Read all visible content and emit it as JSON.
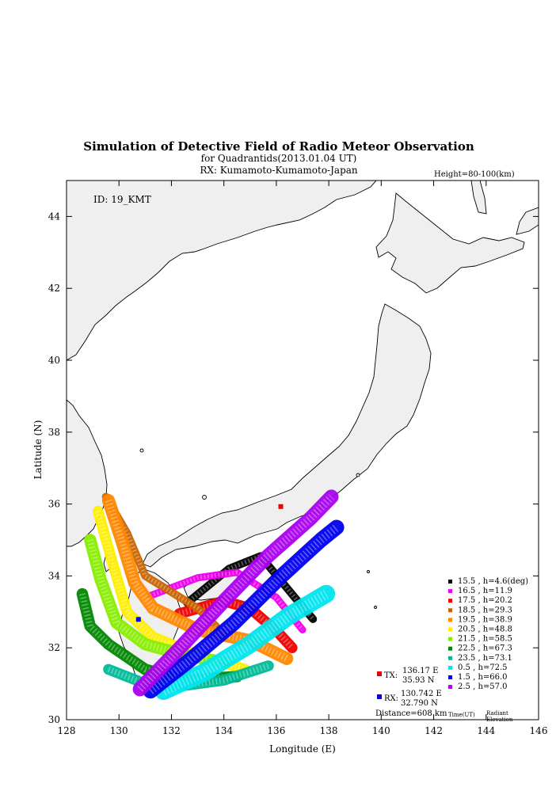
{
  "header": {
    "title": "Simulation of Detective Field of Radio Meteor Observation",
    "subtitle1": "for Quadrantids(2013.01.04 UT)",
    "subtitle2": "RX: Kumamoto-Kumamoto-Japan",
    "height_note": "Height=80-100(km)",
    "id_label": "ID: 19_KMT"
  },
  "axes": {
    "xlabel": "Longitude (E)",
    "ylabel": "Latitude (N)",
    "xlim": [
      128,
      146
    ],
    "ylim": [
      30,
      45
    ],
    "xticks": [
      "128",
      "130",
      "132",
      "134",
      "136",
      "138",
      "140",
      "142",
      "144",
      "146"
    ],
    "yticks": [
      "30",
      "32",
      "34",
      "36",
      "38",
      "40",
      "42",
      "44"
    ]
  },
  "stations": {
    "tx_label": "TX:",
    "tx_lon": "136.17 E",
    "tx_lat": "35.93 N",
    "rx_label": "RX:",
    "rx_lon": "130.742 E",
    "rx_lat": "32.790 N",
    "distance": "Distance=608 km",
    "tx_color": "#ee0000",
    "rx_color": "#0000ee"
  },
  "legend": {
    "time_caption": "Time(UT)",
    "radiant_caption_1": "Radiant",
    "radiant_caption_2": "Elevation"
  },
  "colors": {
    "land": "#efefef",
    "coast": "#000000"
  },
  "chart_data": {
    "type": "scatter",
    "title": "Simulation of Detective Field of Radio Meteor Observation",
    "xlabel": "Longitude (E)",
    "ylabel": "Latitude (N)",
    "xlim": [
      128,
      146
    ],
    "ylim": [
      30,
      45
    ],
    "grid": false,
    "legend_placement": "bottom-right",
    "points": [
      {
        "name": "TX",
        "lon": 136.17,
        "lat": 35.93,
        "color": "#ee0000"
      },
      {
        "name": "RX",
        "lon": 130.742,
        "lat": 32.79,
        "color": "#0000ee"
      }
    ],
    "series": [
      {
        "label": "15.5 , h=4.6(deg)",
        "time": 15.5,
        "elevation": 4.6,
        "color": "#000000",
        "path": [
          [
            132.6,
            33.25
          ],
          [
            134.2,
            34.2
          ],
          [
            135.4,
            34.55
          ],
          [
            136.7,
            33.4
          ],
          [
            137.4,
            32.8
          ]
        ],
        "width": 0.22
      },
      {
        "label": "16.5 , h=11.9",
        "time": 16.5,
        "elevation": 11.9,
        "color": "#ee00ee",
        "path": [
          [
            131.2,
            33.45
          ],
          [
            133.0,
            33.95
          ],
          [
            134.5,
            34.1
          ],
          [
            136.0,
            33.4
          ],
          [
            137.0,
            32.5
          ]
        ],
        "width": 0.2
      },
      {
        "label": "17.5 , h=20.2",
        "time": 17.5,
        "elevation": 20.2,
        "color": "#ee0000",
        "path": [
          [
            132.3,
            32.95
          ],
          [
            134.0,
            33.3
          ],
          [
            135.0,
            33.1
          ],
          [
            136.1,
            32.4
          ],
          [
            136.6,
            32.0
          ]
        ],
        "width": 0.3
      },
      {
        "label": "18.5 , h=29.3",
        "time": 18.5,
        "elevation": 29.3,
        "color": "#c86400",
        "path": [
          [
            129.5,
            36.2
          ],
          [
            130.3,
            35.2
          ],
          [
            131.0,
            34.0
          ],
          [
            132.0,
            33.55
          ],
          [
            133.0,
            33.1
          ],
          [
            133.7,
            32.6
          ]
        ],
        "width": 0.22
      },
      {
        "label": "19.5 , h=38.9",
        "time": 19.5,
        "elevation": 38.9,
        "color": "#ff8800",
        "path": [
          [
            129.6,
            36.1
          ],
          [
            130.1,
            35.0
          ],
          [
            130.6,
            33.8
          ],
          [
            131.3,
            33.1
          ],
          [
            133.0,
            32.5
          ],
          [
            135.0,
            32.2
          ],
          [
            136.4,
            31.7
          ]
        ],
        "width": 0.36
      },
      {
        "label": "20.5 , h=48.8",
        "time": 20.5,
        "elevation": 48.8,
        "color": "#ffee00",
        "path": [
          [
            129.2,
            35.8
          ],
          [
            129.7,
            34.5
          ],
          [
            130.3,
            33.0
          ],
          [
            131.3,
            32.3
          ],
          [
            133.0,
            31.8
          ],
          [
            134.8,
            31.4
          ]
        ],
        "width": 0.3
      },
      {
        "label": "21.5 , h=58.5",
        "time": 21.5,
        "elevation": 58.5,
        "color": "#88ee00",
        "path": [
          [
            128.9,
            35.0
          ],
          [
            129.3,
            33.9
          ],
          [
            129.9,
            32.7
          ],
          [
            131.0,
            32.1
          ],
          [
            132.5,
            31.8
          ],
          [
            134.0,
            31.6
          ]
        ],
        "width": 0.34
      },
      {
        "label": "22.5 , h=67.3",
        "time": 22.5,
        "elevation": 67.3,
        "color": "#008800",
        "path": [
          [
            128.6,
            33.5
          ],
          [
            128.9,
            32.6
          ],
          [
            129.6,
            32.1
          ],
          [
            131.0,
            31.4
          ],
          [
            132.5,
            31.1
          ],
          [
            134.5,
            31.2
          ]
        ],
        "width": 0.32
      },
      {
        "label": "23.5 , h=73.1",
        "time": 23.5,
        "elevation": 73.1,
        "color": "#00bb99",
        "path": [
          [
            129.6,
            31.4
          ],
          [
            131.0,
            31.0
          ],
          [
            132.5,
            30.95
          ],
          [
            134.0,
            31.1
          ],
          [
            135.7,
            31.5
          ]
        ],
        "width": 0.3
      },
      {
        "label": "0.5 , h=72.5",
        "time": 0.5,
        "elevation": 72.5,
        "color": "#00e5ee",
        "path": [
          [
            131.7,
            30.8
          ],
          [
            133.2,
            31.3
          ],
          [
            135.0,
            32.1
          ],
          [
            136.5,
            32.9
          ],
          [
            137.9,
            33.5
          ]
        ],
        "width": 0.5
      },
      {
        "label": "1.5 , h=66.0",
        "time": 1.5,
        "elevation": 66.0,
        "color": "#0000ee",
        "path": [
          [
            131.2,
            30.8
          ],
          [
            132.6,
            31.6
          ],
          [
            134.4,
            32.7
          ],
          [
            136.2,
            34.0
          ],
          [
            137.7,
            35.0
          ],
          [
            138.3,
            35.35
          ]
        ],
        "width": 0.42
      },
      {
        "label": "2.5 , h=57.0",
        "time": 2.5,
        "elevation": 57.0,
        "color": "#aa00ee",
        "path": [
          [
            130.8,
            30.85
          ],
          [
            132.2,
            31.9
          ],
          [
            134.0,
            33.3
          ],
          [
            135.6,
            34.5
          ],
          [
            137.3,
            35.6
          ],
          [
            138.1,
            36.2
          ]
        ],
        "width": 0.4
      }
    ]
  }
}
